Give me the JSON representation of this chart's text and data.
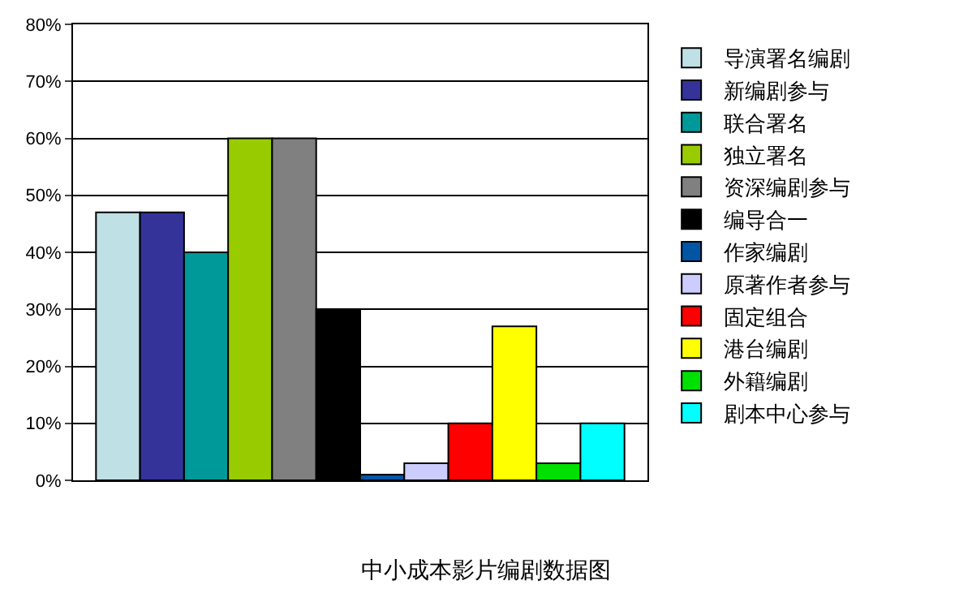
{
  "chart_data": {
    "type": "bar",
    "title": "中小成本影片编剧数据图",
    "categories": [
      null
    ],
    "series": [
      {
        "name": "导演署名编剧",
        "color": "#bfe0e4",
        "values": [
          47
        ]
      },
      {
        "name": "新编剧参与",
        "color": "#333399",
        "values": [
          47
        ]
      },
      {
        "name": "联合署名",
        "color": "#009999",
        "values": [
          40
        ]
      },
      {
        "name": "独立署名",
        "color": "#99cc00",
        "values": [
          60
        ]
      },
      {
        "name": "资深编剧参与",
        "color": "#808080",
        "values": [
          60
        ]
      },
      {
        "name": "编导合一",
        "color": "#000000",
        "values": [
          30
        ]
      },
      {
        "name": "作家编剧",
        "color": "#0055a5",
        "values": [
          1
        ]
      },
      {
        "name": "原著作者参与",
        "color": "#ccccff",
        "values": [
          3
        ]
      },
      {
        "name": "固定组合",
        "color": "#ff0000",
        "values": [
          10
        ]
      },
      {
        "name": "港台编剧",
        "color": "#ffff00",
        "values": [
          27
        ]
      },
      {
        "name": "外籍编剧",
        "color": "#00e000",
        "values": [
          3
        ]
      },
      {
        "name": "剧本中心参与",
        "color": "#00ffff",
        "values": [
          10
        ]
      }
    ],
    "ylim": [
      0,
      80
    ],
    "yticks": [
      {
        "value": 0,
        "label": "0%"
      },
      {
        "value": 10,
        "label": "10%"
      },
      {
        "value": 20,
        "label": "20%"
      },
      {
        "value": 30,
        "label": "30%"
      },
      {
        "value": 40,
        "label": "40%"
      },
      {
        "value": 50,
        "label": "50%"
      },
      {
        "value": 60,
        "label": "60%"
      },
      {
        "value": 70,
        "label": "70%"
      },
      {
        "value": 80,
        "label": "80%"
      }
    ],
    "grid": "y",
    "legend": "right"
  }
}
